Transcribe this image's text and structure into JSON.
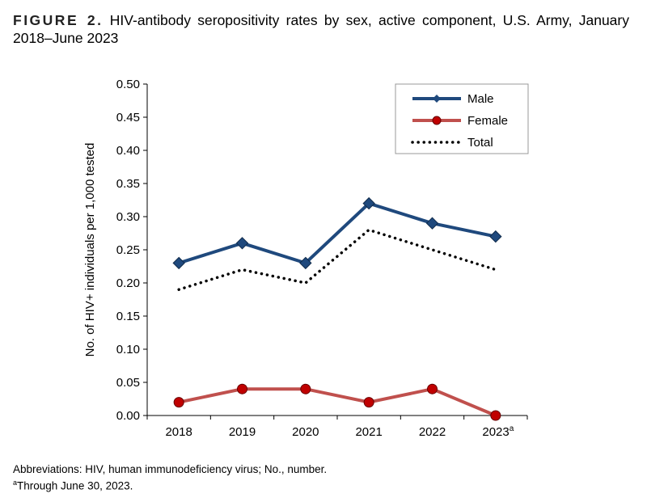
{
  "figure": {
    "label": "FIGURE 2.",
    "title": "HIV-antibody seropositivity rates by sex, active component, U.S. Army, January 2018–June 2023"
  },
  "notes": {
    "abbreviations": "Abbreviations: HIV, human immunodeficiency virus; No., number.",
    "footnote_marker": "a",
    "footnote": "Through June 30, 2023."
  },
  "chart_data": {
    "type": "line",
    "ylabel": "No. of HIV+ individuals per 1,000 tested",
    "xlabel": "",
    "categories": [
      "2018",
      "2019",
      "2020",
      "2021",
      "2022",
      "2023"
    ],
    "category_superscripts": [
      "",
      "",
      "",
      "",
      "",
      "a"
    ],
    "ylim": [
      0,
      0.5
    ],
    "yticks": [
      "0.00",
      "0.05",
      "0.10",
      "0.15",
      "0.20",
      "0.25",
      "0.30",
      "0.35",
      "0.40",
      "0.45",
      "0.50"
    ],
    "grid": false,
    "legend_position": "top-right",
    "series": [
      {
        "name": "Male",
        "values": [
          0.23,
          0.26,
          0.23,
          0.32,
          0.29,
          0.27
        ],
        "color": "#1F497D",
        "marker": "diamond",
        "style": "solid"
      },
      {
        "name": "Female",
        "values": [
          0.02,
          0.04,
          0.04,
          0.02,
          0.04,
          0.0
        ],
        "color": "#C0504D",
        "marker": "circle",
        "marker_fill": "#C00000",
        "style": "solid"
      },
      {
        "name": "Total",
        "values": [
          0.19,
          0.22,
          0.2,
          0.28,
          0.25,
          0.22
        ],
        "color": "#000000",
        "marker": "none",
        "style": "dotted"
      }
    ]
  }
}
